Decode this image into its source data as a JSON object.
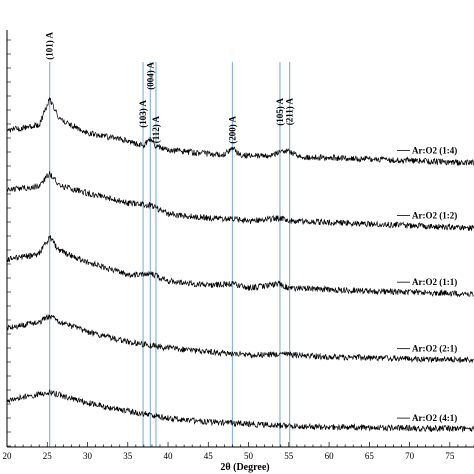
{
  "chart_data": {
    "type": "line",
    "title": "",
    "xlabel": "2θ (Degree)",
    "ylabel": "",
    "xlim": [
      20,
      78
    ],
    "xticks": [
      20,
      25,
      30,
      35,
      40,
      45,
      50,
      55,
      60,
      65,
      70,
      75
    ],
    "grid": false,
    "colors": {
      "trace": "#000000",
      "reference_line": "#8fb4de",
      "axis": "#000000"
    },
    "reference_peaks": [
      {
        "label": "(101) A",
        "x": 25.3
      },
      {
        "label": "(103) A",
        "x": 36.9
      },
      {
        "label": "(004) A",
        "x": 37.8
      },
      {
        "label": "(112) A",
        "x": 38.5
      },
      {
        "label": "(200) A",
        "x": 48.0
      },
      {
        "label": "(105) A",
        "x": 53.9
      },
      {
        "label": "(211) A",
        "x": 55.1
      }
    ],
    "series": [
      {
        "name": "Ar:O2 (1:4)",
        "profile": [
          [
            20,
            130
          ],
          [
            22,
            128
          ],
          [
            24,
            125
          ],
          [
            25.3,
            98
          ],
          [
            26.5,
            119
          ],
          [
            30,
            133
          ],
          [
            35,
            141
          ],
          [
            36.9,
            146
          ],
          [
            37.8,
            139
          ],
          [
            38.5,
            146
          ],
          [
            40,
            150
          ],
          [
            45,
            154
          ],
          [
            47,
            155
          ],
          [
            48,
            148
          ],
          [
            49,
            155
          ],
          [
            53,
            156
          ],
          [
            53.9,
            150
          ],
          [
            55.1,
            152
          ],
          [
            57,
            157
          ],
          [
            65,
            159
          ],
          [
            78,
            163
          ]
        ]
      },
      {
        "name": "Ar:O2 (1:2)",
        "profile": [
          [
            20,
            190
          ],
          [
            22,
            188
          ],
          [
            24,
            186
          ],
          [
            25.3,
            173
          ],
          [
            26.5,
            186
          ],
          [
            30,
            193
          ],
          [
            35,
            203
          ],
          [
            37.8,
            205
          ],
          [
            40,
            214
          ],
          [
            45,
            218
          ],
          [
            48,
            219
          ],
          [
            50,
            221
          ],
          [
            53.9,
            218
          ],
          [
            55,
            221
          ],
          [
            65,
            224
          ],
          [
            78,
            228
          ]
        ]
      },
      {
        "name": "Ar:O2 (1:1)",
        "profile": [
          [
            20,
            259
          ],
          [
            22,
            257
          ],
          [
            24,
            254
          ],
          [
            25.3,
            237
          ],
          [
            26.5,
            251
          ],
          [
            30,
            262
          ],
          [
            35,
            275
          ],
          [
            37.8,
            273
          ],
          [
            40,
            281
          ],
          [
            45,
            285
          ],
          [
            48,
            284
          ],
          [
            50,
            288
          ],
          [
            53.9,
            284
          ],
          [
            55,
            288
          ],
          [
            65,
            291
          ],
          [
            78,
            294
          ]
        ]
      },
      {
        "name": "Ar:O2 (2:1)",
        "profile": [
          [
            20,
            328
          ],
          [
            22,
            325
          ],
          [
            24,
            322
          ],
          [
            25.3,
            316
          ],
          [
            26.5,
            322
          ],
          [
            30,
            332
          ],
          [
            35,
            342
          ],
          [
            40,
            348
          ],
          [
            45,
            352
          ],
          [
            48,
            354
          ],
          [
            50,
            355
          ],
          [
            54,
            354
          ],
          [
            60,
            357
          ],
          [
            78,
            360
          ]
        ]
      },
      {
        "name": "Ar:O2 (4:1)",
        "profile": [
          [
            20,
            401
          ],
          [
            22,
            397
          ],
          [
            24,
            394
          ],
          [
            25.3,
            392
          ],
          [
            27,
            396
          ],
          [
            30,
            403
          ],
          [
            35,
            411
          ],
          [
            40,
            418
          ],
          [
            45,
            422
          ],
          [
            50,
            424
          ],
          [
            55,
            426
          ],
          [
            60,
            427
          ],
          [
            78,
            429
          ]
        ]
      }
    ]
  }
}
